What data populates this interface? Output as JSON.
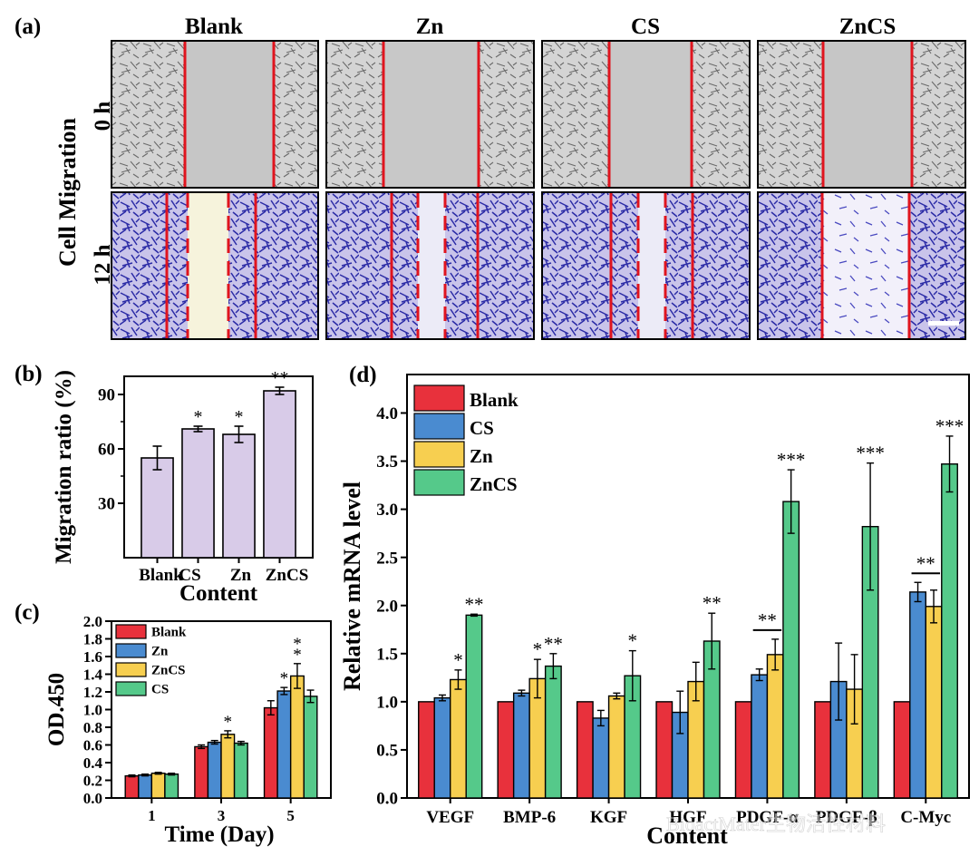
{
  "panel_labels": {
    "a": "(a)",
    "b": "(b)",
    "c": "(c)",
    "d": "(d)"
  },
  "micrographs": {
    "row_title": "Cell Migration",
    "row_labels": [
      "0 h",
      "12 h"
    ],
    "column_labels": [
      "Blank",
      "Zn",
      "CS",
      "ZnCS"
    ],
    "colors": {
      "line": "#e0141e",
      "stain": "#2f2fa0",
      "phase": "#c4c4c4"
    }
  },
  "watermark": "BioactMater生物活性材料",
  "chart_data": [
    {
      "id": "b",
      "type": "bar",
      "title": "",
      "xlabel": "Content",
      "ylabel": "Migration ratio (%)",
      "ylim": [
        0,
        100
      ],
      "yticks": [
        30,
        60,
        90
      ],
      "categories": [
        "Blank",
        "CS",
        "Zn",
        "ZnCS"
      ],
      "values": [
        55,
        71,
        68,
        92
      ],
      "errors": [
        6.5,
        1.5,
        4.5,
        2.0
      ],
      "annotations": [
        "",
        "*",
        "*",
        "**"
      ],
      "color": "#d8cbe8"
    },
    {
      "id": "c",
      "type": "bar",
      "title": "",
      "xlabel": "Time (Day)",
      "ylabel": "OD.450",
      "ylim": [
        0,
        2.0
      ],
      "yticks": [
        0.0,
        0.2,
        0.4,
        0.6,
        0.8,
        1.0,
        1.2,
        1.4,
        1.6,
        1.8,
        2.0
      ],
      "categories": [
        "1",
        "3",
        "5"
      ],
      "legend_position": "top-left",
      "series": [
        {
          "name": "Blank",
          "color": "#e8313c",
          "values": [
            0.25,
            0.58,
            1.02
          ],
          "errors": [
            0.01,
            0.02,
            0.08
          ],
          "annotations": [
            "",
            "",
            ""
          ]
        },
        {
          "name": "Zn",
          "color": "#4a8bd0",
          "values": [
            0.26,
            0.63,
            1.21
          ],
          "errors": [
            0.01,
            0.02,
            0.04
          ],
          "annotations": [
            "",
            "",
            "*"
          ]
        },
        {
          "name": "ZnCS",
          "color": "#f7cf50",
          "values": [
            0.28,
            0.72,
            1.38
          ],
          "errors": [
            0.01,
            0.04,
            0.14
          ],
          "annotations": [
            "",
            "*",
            "**"
          ]
        },
        {
          "name": "CS",
          "color": "#55c98a",
          "values": [
            0.27,
            0.62,
            1.15
          ],
          "errors": [
            0.01,
            0.02,
            0.07
          ],
          "annotations": [
            "",
            "",
            ""
          ]
        }
      ]
    },
    {
      "id": "d",
      "type": "bar",
      "title": "",
      "xlabel": "Content",
      "ylabel": "Relative mRNA level",
      "ylim": [
        0,
        4.4
      ],
      "yticks": [
        0.0,
        0.5,
        1.0,
        1.5,
        2.0,
        2.5,
        3.0,
        3.5,
        4.0
      ],
      "categories": [
        "VEGF",
        "BMP-6",
        "KGF",
        "HGF",
        "PDGF-α",
        "PDGF-β",
        "C-Myc"
      ],
      "legend_position": "top-left",
      "series": [
        {
          "name": "Blank",
          "color": "#e8313c",
          "values": [
            1.0,
            1.0,
            1.0,
            1.0,
            1.0,
            1.0,
            1.0
          ],
          "errors": [
            0,
            0,
            0,
            0,
            0,
            0,
            0
          ],
          "annotations": [
            "",
            "",
            "",
            "",
            "",
            "",
            ""
          ]
        },
        {
          "name": "CS",
          "color": "#4a8bd0",
          "values": [
            1.04,
            1.09,
            0.83,
            0.89,
            1.28,
            1.21,
            2.14
          ],
          "errors": [
            0.03,
            0.03,
            0.08,
            0.22,
            0.06,
            0.4,
            0.1
          ],
          "annotations": [
            "",
            "",
            "",
            "",
            "",
            "",
            ""
          ]
        },
        {
          "name": "Zn",
          "color": "#f7cf50",
          "values": [
            1.23,
            1.24,
            1.06,
            1.21,
            1.49,
            1.13,
            1.99
          ],
          "errors": [
            0.1,
            0.2,
            0.03,
            0.2,
            0.16,
            0.36,
            0.17
          ],
          "annotations": [
            "*",
            "*",
            "",
            "",
            "",
            "",
            ""
          ]
        },
        {
          "name": "ZnCS",
          "color": "#55c98a",
          "values": [
            1.9,
            1.37,
            1.27,
            1.63,
            3.08,
            2.82,
            3.47
          ],
          "errors": [
            0.01,
            0.13,
            0.26,
            0.29,
            0.33,
            0.66,
            0.29
          ],
          "annotations": [
            "**",
            "**",
            "*",
            "**",
            "***",
            "***",
            "***"
          ]
        }
      ],
      "bracket_annotations": [
        {
          "category": "PDGF-α",
          "from_series": "CS",
          "to_series": "Zn",
          "label": "**"
        },
        {
          "category": "C-Myc",
          "from_series": "CS",
          "to_series": "Zn",
          "label": "**"
        }
      ]
    }
  ]
}
